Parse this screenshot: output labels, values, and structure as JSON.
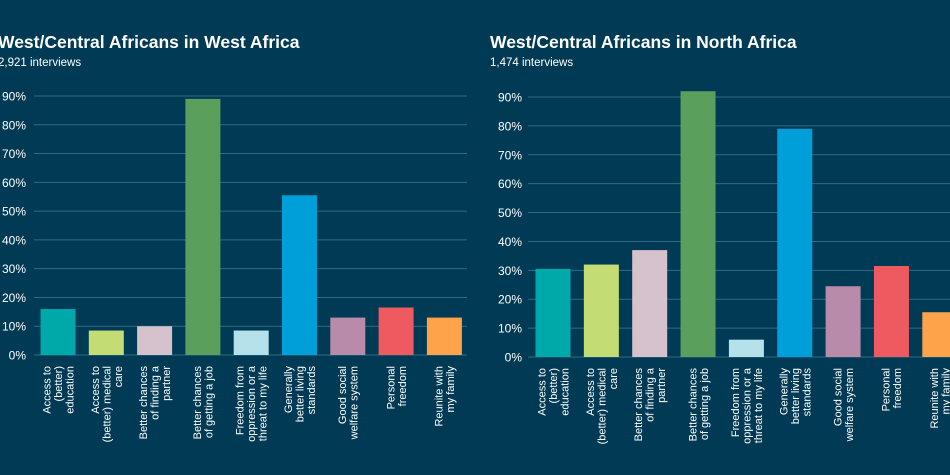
{
  "chart_data": [
    {
      "type": "bar",
      "title": "West/Central Africans in West Africa",
      "subtitle": "2,921 interviews",
      "categories": [
        "Access to (better) education",
        "Access to (better) medical care",
        "Better chances of finding a partner",
        "Better chances of getting a job",
        "Freedom from oppression or a threat to my life",
        "Generally better living standards",
        "Good social welfare system",
        "Personal freedom",
        "Reunite with my family"
      ],
      "category_lines": [
        [
          "Access to",
          "(better)",
          "education"
        ],
        [
          "Access to",
          "(better) medical",
          "care"
        ],
        [
          "Better chances",
          "of finding a",
          "partner"
        ],
        [
          "Better chances",
          "of getting a job"
        ],
        [
          "Freedom from",
          "oppression or a",
          "threat to my life"
        ],
        [
          "Generally",
          "better living",
          "standards"
        ],
        [
          "Good social",
          "welfare system"
        ],
        [
          "Personal",
          "freedom"
        ],
        [
          "Reunite with",
          "my family"
        ]
      ],
      "values": [
        16,
        8.5,
        10,
        89,
        8.5,
        55.5,
        13,
        16.5,
        13
      ],
      "colors": [
        "#00a9a9",
        "#c3dc74",
        "#d6c2cd",
        "#5b9f5d",
        "#b5e2ea",
        "#009fd9",
        "#b98bab",
        "#ee5a5f",
        "#ffa34a"
      ],
      "yticks": [
        "0%",
        "10%",
        "20%",
        "30%",
        "40%",
        "50%",
        "60%",
        "70%",
        "80%",
        "90%"
      ],
      "ylim": [
        0,
        90
      ]
    },
    {
      "type": "bar",
      "title": "West/Central Africans in North Africa",
      "subtitle": "1,474 interviews",
      "categories": [
        "Access to (better) education",
        "Access to (better) medical care",
        "Better chances of finding a partner",
        "Better chances of getting a job",
        "Freedom from oppression or a threat to my life",
        "Generally better living standards",
        "Good social welfare system",
        "Personal freedom",
        "Reunite with my family"
      ],
      "category_lines": [
        [
          "Access to",
          "(better)",
          "education"
        ],
        [
          "Access to",
          "(better) medical",
          "care"
        ],
        [
          "Better chances",
          "of finding a",
          "partner"
        ],
        [
          "Better chances",
          "of getting a job"
        ],
        [
          "Freedom from",
          "oppression or a",
          "threat to my life"
        ],
        [
          "Generally",
          "better living",
          "standards"
        ],
        [
          "Good social",
          "welfare system"
        ],
        [
          "Personal",
          "freedom"
        ],
        [
          "Reunite with",
          "my family"
        ]
      ],
      "values": [
        30.5,
        32,
        37,
        92,
        6,
        79,
        24.5,
        31.5,
        15.5
      ],
      "colors": [
        "#00a9a9",
        "#c3dc74",
        "#d6c2cd",
        "#5b9f5d",
        "#b5e2ea",
        "#009fd9",
        "#b98bab",
        "#ee5a5f",
        "#ffa34a"
      ],
      "yticks": [
        "0%",
        "10%",
        "20%",
        "30%",
        "40%",
        "50%",
        "60%",
        "70%",
        "80%",
        "90%"
      ],
      "ylim": [
        0,
        90
      ]
    }
  ],
  "style": {
    "background": "#003a54",
    "gridline": "#2d6c86",
    "text": "#ffffff"
  }
}
